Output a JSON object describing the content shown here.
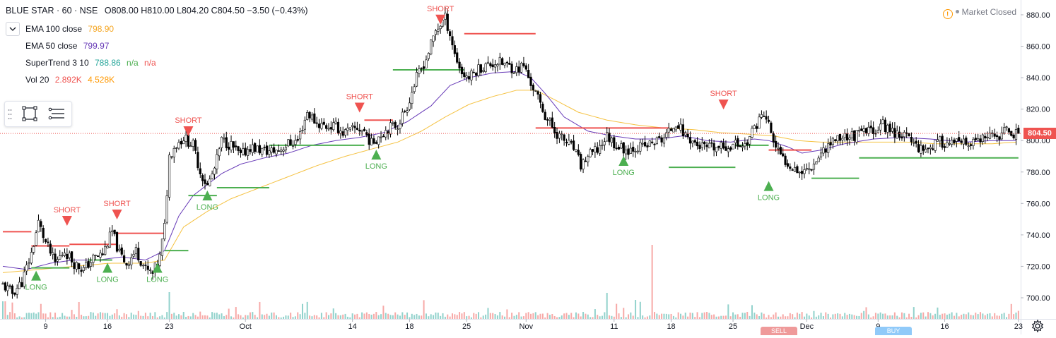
{
  "header": {
    "symbol": "BLUE STAR · 60 · NSE",
    "ohlc": "O808.00 H810.00 L804.20 C804.50 −3.50 (−0.43%)"
  },
  "legend": [
    {
      "name": "EMA 100 close",
      "values": [
        "798.90"
      ],
      "colors": [
        "#f5a623"
      ]
    },
    {
      "name": "EMA 50 close",
      "values": [
        "799.97"
      ],
      "colors": [
        "#673ab7"
      ]
    },
    {
      "name": "SuperTrend 3 10",
      "values": [
        "788.86",
        "n/a",
        "n/a"
      ],
      "colors": [
        "#26a69a",
        "#4caf50",
        "#ef5350"
      ]
    },
    {
      "name": "Vol 20",
      "values": [
        "2.892K",
        "4.528K"
      ],
      "colors": [
        "#ef5350",
        "#ff9800"
      ]
    }
  ],
  "market_status": "Market Closed",
  "last_price": "804.50",
  "colors": {
    "up": "#26a69a",
    "down": "#ef5350",
    "candle_up_body": "#ffffff",
    "candle_outline": "#000000",
    "st_long": "#4caf50",
    "st_short": "#ef5350",
    "ema50": "#673ab7",
    "ema100": "#f5c242",
    "vol_up": "#26a69a",
    "vol_down": "#ef5350"
  },
  "chart_data": {
    "type": "candlestick",
    "ylim": [
      692,
      888
    ],
    "y_ticks": [
      "700.00",
      "720.00",
      "740.00",
      "760.00",
      "780.00",
      "800.00",
      "820.00",
      "840.00",
      "860.00",
      "880.00"
    ],
    "x_ticks": [
      {
        "label": "9",
        "bar": 18
      },
      {
        "label": "16",
        "bar": 44
      },
      {
        "label": "23",
        "bar": 70
      },
      {
        "label": "Oct",
        "bar": 102
      },
      {
        "label": "14",
        "bar": 147
      },
      {
        "label": "18",
        "bar": 171
      },
      {
        "label": "25",
        "bar": 195
      },
      {
        "label": "Nov",
        "bar": 220
      },
      {
        "label": "11",
        "bar": 257
      },
      {
        "label": "18",
        "bar": 281
      },
      {
        "label": "25",
        "bar": 307
      },
      {
        "label": "Dec",
        "bar": 338
      },
      {
        "label": "9",
        "bar": 368
      },
      {
        "label": "16",
        "bar": 396
      },
      {
        "label": "23",
        "bar": 427
      }
    ],
    "anchors": [
      [
        0,
        708
      ],
      [
        4,
        703
      ],
      [
        8,
        710
      ],
      [
        12,
        728
      ],
      [
        15,
        748
      ],
      [
        18,
        735
      ],
      [
        22,
        722
      ],
      [
        26,
        730
      ],
      [
        30,
        722
      ],
      [
        34,
        718
      ],
      [
        38,
        725
      ],
      [
        42,
        728
      ],
      [
        46,
        742
      ],
      [
        49,
        728
      ],
      [
        52,
        722
      ],
      [
        56,
        730
      ],
      [
        60,
        718
      ],
      [
        63,
        715
      ],
      [
        66,
        726
      ],
      [
        68,
        745
      ],
      [
        70,
        790
      ],
      [
        72,
        796
      ],
      [
        76,
        802
      ],
      [
        80,
        797
      ],
      [
        83,
        780
      ],
      [
        86,
        771
      ],
      [
        89,
        782
      ],
      [
        92,
        800
      ],
      [
        96,
        797
      ],
      [
        100,
        790
      ],
      [
        104,
        796
      ],
      [
        108,
        794
      ],
      [
        112,
        793
      ],
      [
        116,
        794
      ],
      [
        120,
        798
      ],
      [
        124,
        800
      ],
      [
        128,
        818
      ],
      [
        132,
        811
      ],
      [
        136,
        809
      ],
      [
        140,
        809
      ],
      [
        143,
        805
      ],
      [
        146,
        806
      ],
      [
        149,
        808
      ],
      [
        152,
        806
      ],
      [
        155,
        798
      ],
      [
        158,
        803
      ],
      [
        162,
        808
      ],
      [
        166,
        810
      ],
      [
        170,
        822
      ],
      [
        174,
        840
      ],
      [
        178,
        852
      ],
      [
        182,
        870
      ],
      [
        186,
        878
      ],
      [
        188,
        868
      ],
      [
        190,
        855
      ],
      [
        193,
        843
      ],
      [
        196,
        840
      ],
      [
        200,
        846
      ],
      [
        204,
        848
      ],
      [
        208,
        850
      ],
      [
        212,
        848
      ],
      [
        216,
        845
      ],
      [
        219,
        848
      ],
      [
        221,
        840
      ],
      [
        224,
        830
      ],
      [
        228,
        816
      ],
      [
        232,
        806
      ],
      [
        236,
        800
      ],
      [
        240,
        795
      ],
      [
        243,
        784
      ],
      [
        246,
        790
      ],
      [
        250,
        794
      ],
      [
        254,
        803
      ],
      [
        258,
        797
      ],
      [
        262,
        794
      ],
      [
        266,
        796
      ],
      [
        270,
        796
      ],
      [
        274,
        799
      ],
      [
        277,
        801
      ],
      [
        280,
        805
      ],
      [
        283,
        812
      ],
      [
        286,
        805
      ],
      [
        289,
        801
      ],
      [
        292,
        797
      ],
      [
        296,
        795
      ],
      [
        300,
        795
      ],
      [
        304,
        796
      ],
      [
        308,
        798
      ],
      [
        312,
        797
      ],
      [
        315,
        805
      ],
      [
        318,
        814
      ],
      [
        320,
        816
      ],
      [
        322,
        810
      ],
      [
        325,
        795
      ],
      [
        328,
        788
      ],
      [
        332,
        784
      ],
      [
        336,
        780
      ],
      [
        340,
        784
      ],
      [
        343,
        790
      ],
      [
        346,
        796
      ],
      [
        350,
        801
      ],
      [
        354,
        803
      ],
      [
        358,
        803
      ],
      [
        362,
        805
      ],
      [
        366,
        807
      ],
      [
        370,
        810
      ],
      [
        374,
        806
      ],
      [
        378,
        804
      ],
      [
        382,
        800
      ],
      [
        386,
        795
      ],
      [
        390,
        796
      ],
      [
        394,
        799
      ],
      [
        398,
        798
      ],
      [
        402,
        798
      ],
      [
        406,
        797
      ],
      [
        410,
        800
      ],
      [
        414,
        801
      ],
      [
        418,
        803
      ],
      [
        422,
        806
      ],
      [
        425,
        805
      ],
      [
        426,
        804.5
      ]
    ],
    "ema50_anchors": [
      [
        0,
        720
      ],
      [
        10,
        718
      ],
      [
        20,
        722
      ],
      [
        30,
        724
      ],
      [
        40,
        724
      ],
      [
        50,
        726
      ],
      [
        60,
        724
      ],
      [
        68,
        730
      ],
      [
        74,
        752
      ],
      [
        80,
        765
      ],
      [
        86,
        772
      ],
      [
        92,
        779
      ],
      [
        100,
        785
      ],
      [
        110,
        789
      ],
      [
        120,
        792
      ],
      [
        130,
        797
      ],
      [
        140,
        800
      ],
      [
        150,
        802
      ],
      [
        160,
        805
      ],
      [
        170,
        812
      ],
      [
        180,
        822
      ],
      [
        188,
        835
      ],
      [
        196,
        840
      ],
      [
        206,
        843
      ],
      [
        216,
        844
      ],
      [
        222,
        840
      ],
      [
        228,
        830
      ],
      [
        236,
        815
      ],
      [
        246,
        806
      ],
      [
        256,
        803
      ],
      [
        266,
        801
      ],
      [
        276,
        801
      ],
      [
        286,
        803
      ],
      [
        296,
        800
      ],
      [
        306,
        799
      ],
      [
        316,
        801
      ],
      [
        322,
        800
      ],
      [
        330,
        796
      ],
      [
        336,
        792
      ],
      [
        344,
        794
      ],
      [
        354,
        798
      ],
      [
        366,
        801
      ],
      [
        378,
        802
      ],
      [
        390,
        801
      ],
      [
        404,
        799
      ],
      [
        416,
        800
      ],
      [
        426,
        800
      ]
    ],
    "ema100_anchors": [
      [
        0,
        716
      ],
      [
        15,
        718
      ],
      [
        30,
        720
      ],
      [
        45,
        722
      ],
      [
        60,
        722
      ],
      [
        68,
        724
      ],
      [
        76,
        745
      ],
      [
        86,
        755
      ],
      [
        96,
        763
      ],
      [
        108,
        770
      ],
      [
        120,
        777
      ],
      [
        132,
        784
      ],
      [
        144,
        790
      ],
      [
        156,
        795
      ],
      [
        166,
        799
      ],
      [
        176,
        806
      ],
      [
        186,
        815
      ],
      [
        196,
        823
      ],
      [
        206,
        828
      ],
      [
        216,
        832
      ],
      [
        224,
        832
      ],
      [
        232,
        826
      ],
      [
        242,
        818
      ],
      [
        254,
        813
      ],
      [
        266,
        810
      ],
      [
        278,
        808
      ],
      [
        290,
        807
      ],
      [
        302,
        805
      ],
      [
        314,
        804
      ],
      [
        324,
        803
      ],
      [
        334,
        800
      ],
      [
        344,
        799
      ],
      [
        356,
        799
      ],
      [
        368,
        799
      ],
      [
        380,
        799
      ],
      [
        392,
        798
      ],
      [
        404,
        798
      ],
      [
        416,
        798
      ],
      [
        426,
        799
      ]
    ],
    "supertrend": [
      {
        "dir": "short",
        "from": 0,
        "to": 12,
        "level": 742
      },
      {
        "dir": "short",
        "from": 12,
        "to": 28,
        "level": 733
      },
      {
        "dir": "long",
        "from": 12,
        "to": 28,
        "level": 719
      },
      {
        "dir": "short",
        "from": 28,
        "to": 48,
        "level": 734
      },
      {
        "dir": "long",
        "from": 36,
        "to": 46,
        "level": 724
      },
      {
        "dir": "short",
        "from": 48,
        "to": 68,
        "level": 741
      },
      {
        "dir": "long",
        "from": 68,
        "to": 78,
        "level": 730
      },
      {
        "dir": "long",
        "from": 78,
        "to": 90,
        "level": 765
      },
      {
        "dir": "long",
        "from": 90,
        "to": 112,
        "level": 770
      },
      {
        "dir": "long",
        "from": 112,
        "to": 152,
        "level": 797
      },
      {
        "dir": "short",
        "from": 152,
        "to": 164,
        "level": 813
      },
      {
        "dir": "long",
        "from": 164,
        "to": 194,
        "level": 845
      },
      {
        "dir": "short",
        "from": 194,
        "to": 224,
        "level": 868
      },
      {
        "dir": "short",
        "from": 224,
        "to": 280,
        "level": 808
      },
      {
        "dir": "long",
        "from": 280,
        "to": 308,
        "level": 783
      },
      {
        "dir": "long",
        "from": 308,
        "to": 322,
        "level": 797
      },
      {
        "dir": "short",
        "from": 322,
        "to": 340,
        "level": 794
      },
      {
        "dir": "long",
        "from": 340,
        "to": 360,
        "level": 776
      },
      {
        "dir": "long",
        "from": 360,
        "to": 427,
        "level": 789
      }
    ],
    "signals": [
      {
        "type": "short",
        "label": "SHORT",
        "bar": 27,
        "price": 744
      },
      {
        "type": "long",
        "label": "LONG",
        "bar": 14,
        "price": 719
      },
      {
        "type": "short",
        "label": "SHORT",
        "bar": 48,
        "price": 748
      },
      {
        "type": "long",
        "label": "LONG",
        "bar": 44,
        "price": 724
      },
      {
        "type": "long",
        "label": "LONG",
        "bar": 65,
        "price": 724
      },
      {
        "type": "short",
        "label": "SHORT",
        "bar": 78,
        "price": 801
      },
      {
        "type": "long",
        "label": "LONG",
        "bar": 86,
        "price": 770
      },
      {
        "type": "short",
        "label": "SHORT",
        "bar": 150,
        "price": 816
      },
      {
        "type": "long",
        "label": "LONG",
        "bar": 157,
        "price": 796
      },
      {
        "type": "short",
        "label": "SHORT",
        "bar": 184,
        "price": 872
      },
      {
        "type": "long",
        "label": "LONG",
        "bar": 261,
        "price": 792
      },
      {
        "type": "short",
        "label": "SHORT",
        "bar": 303,
        "price": 818
      },
      {
        "type": "long",
        "label": "LONG",
        "bar": 322,
        "price": 776
      }
    ]
  },
  "bottom_tabs": [
    "SELL",
    "BUY"
  ]
}
